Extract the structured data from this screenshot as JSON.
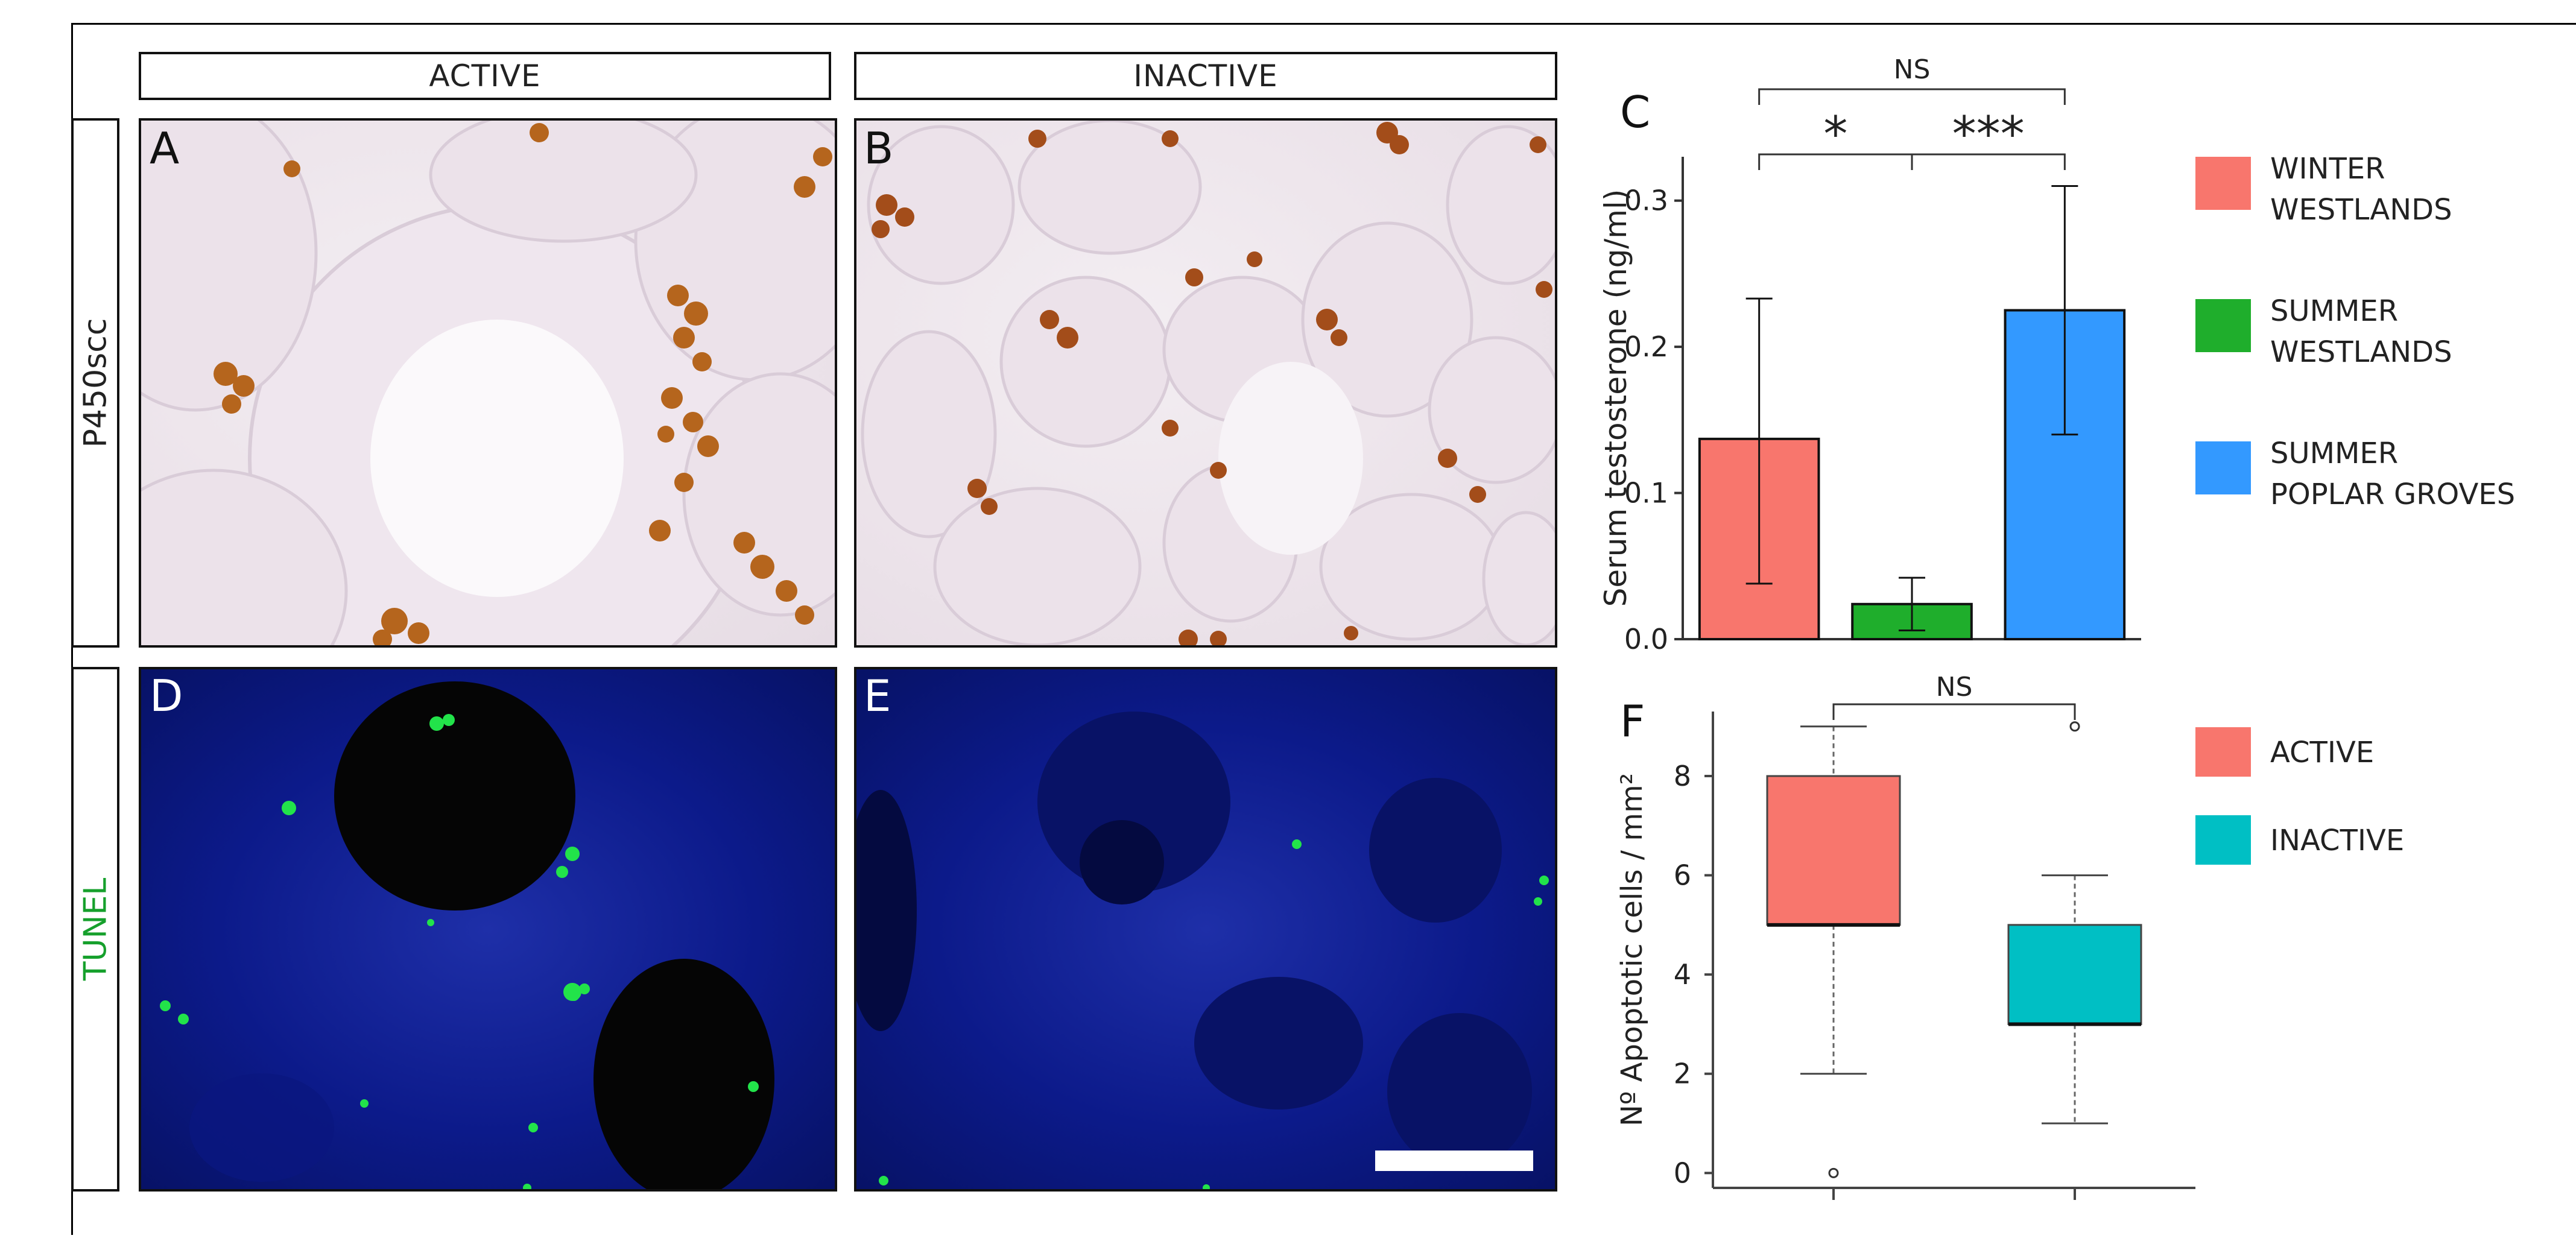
{
  "figure": {
    "column_headers": [
      "ACTIVE",
      "INACTIVE"
    ],
    "row_labels": [
      "P450scc",
      "TUNEL"
    ],
    "panel_letters": {
      "A": "A",
      "B": "B",
      "C": "C",
      "D": "D",
      "E": "E",
      "F": "F"
    },
    "colors": {
      "tunel_label": "#16a02c"
    }
  },
  "chart_data": [
    {
      "panel": "C",
      "type": "bar",
      "title": "",
      "ylabel": "Serum testosterone (ng/ml)",
      "xlabel": "",
      "ylim": [
        0,
        0.33
      ],
      "yticks": [
        0.0,
        0.1,
        0.2,
        0.3
      ],
      "ytick_labels": [
        "0.0",
        "0.1",
        "0.2",
        "0.3"
      ],
      "categories": [
        "WINTER WESTLANDS",
        "SUMMER WESTLANDS",
        "SUMMER POPLAR GROVES"
      ],
      "values": [
        0.137,
        0.024,
        0.225
      ],
      "error_low": [
        0.038,
        0.006,
        0.14
      ],
      "error_high": [
        0.233,
        0.042,
        0.31
      ],
      "colors": [
        "#f8766d",
        "#1fae2c",
        "#3399ff"
      ],
      "legend": [
        {
          "line1": "WINTER",
          "line2": "WESTLANDS",
          "color": "#f8766d"
        },
        {
          "line1": "SUMMER",
          "line2": "WESTLANDS",
          "color": "#1fae2c"
        },
        {
          "line1": "SUMMER",
          "line2": "POPLAR GROVES",
          "color": "#3399ff"
        }
      ],
      "legend_position": "right",
      "significance": [
        {
          "from": 0,
          "to": 1,
          "label": "*"
        },
        {
          "from": 1,
          "to": 2,
          "label": "***"
        },
        {
          "from": 0,
          "to": 2,
          "label": "NS"
        }
      ],
      "grid": false
    },
    {
      "panel": "F",
      "type": "box",
      "title": "",
      "ylabel": "Nº Apoptotic cells / mm²",
      "xlabel": "",
      "ylim": [
        -0.3,
        9.3
      ],
      "yticks": [
        0,
        2,
        4,
        6,
        8
      ],
      "ytick_labels": [
        "0",
        "2",
        "4",
        "6",
        "8"
      ],
      "series": [
        {
          "name": "ACTIVE",
          "color": "#f8766d",
          "whisker_low": 2,
          "q1": 5,
          "median": 5,
          "q3": 8,
          "whisker_high": 9,
          "outliers": [
            0
          ]
        },
        {
          "name": "INACTIVE",
          "color": "#00bfc4",
          "whisker_low": 1,
          "q1": 3,
          "median": 3,
          "q3": 5,
          "whisker_high": 6,
          "outliers": [
            9
          ]
        }
      ],
      "legend": [
        {
          "label": "ACTIVE",
          "color": "#f8766d"
        },
        {
          "label": "INACTIVE",
          "color": "#00bfc4"
        }
      ],
      "legend_position": "right",
      "significance": [
        {
          "from": 0,
          "to": 1,
          "label": "NS"
        }
      ],
      "grid": false
    }
  ]
}
